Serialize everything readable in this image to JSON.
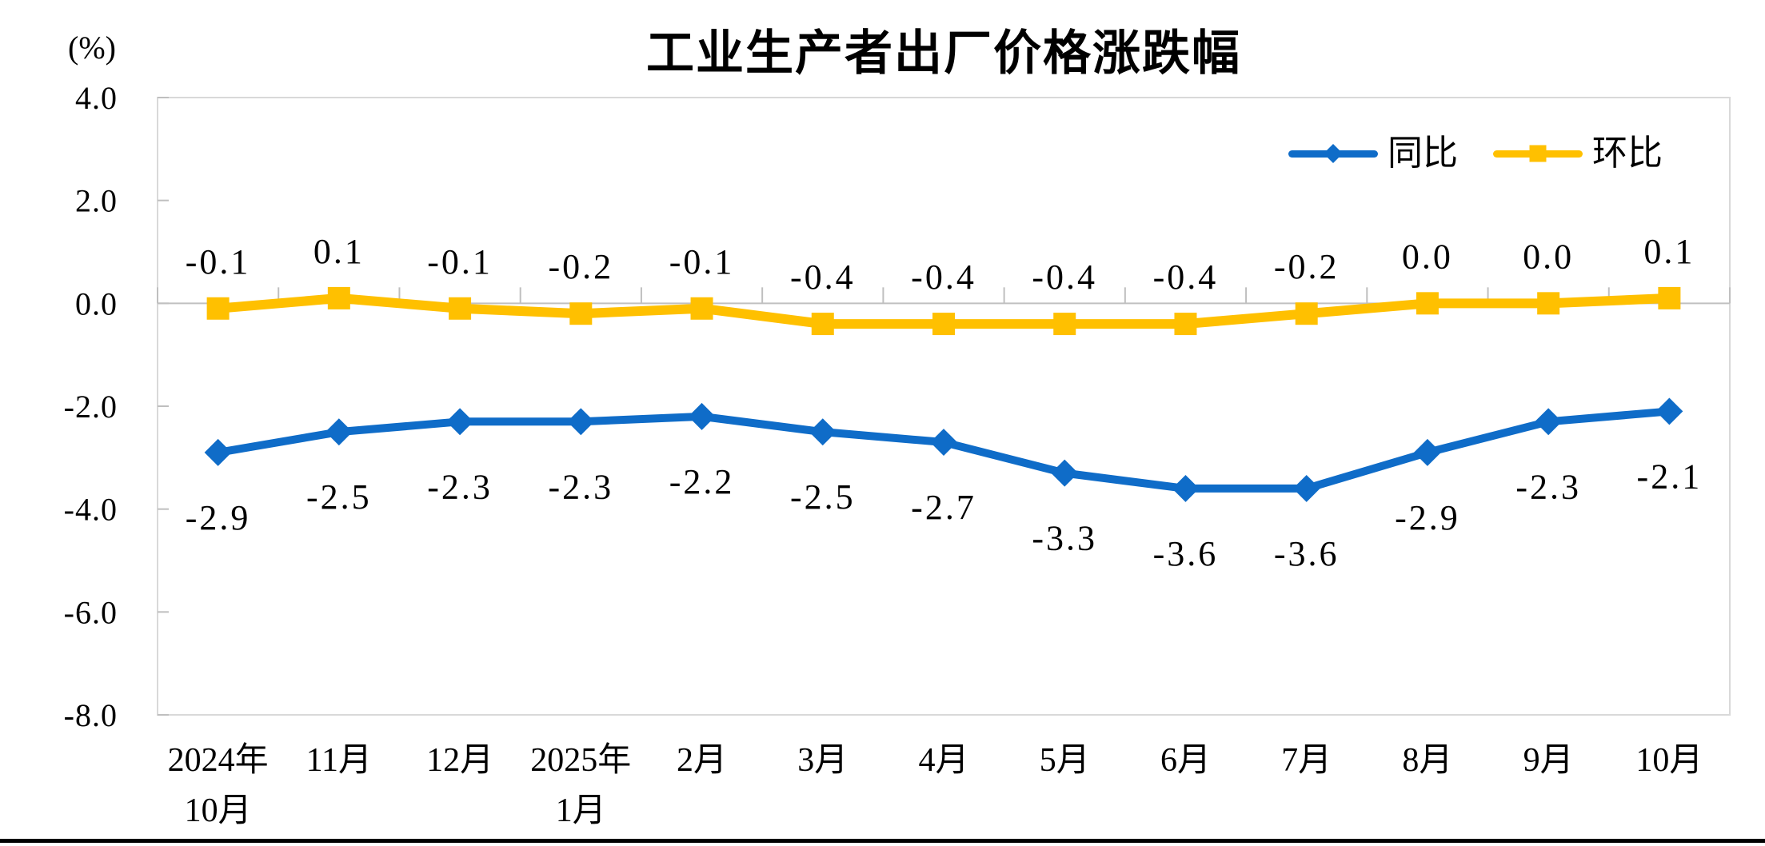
{
  "page": {
    "background": "#FFFFFF"
  },
  "header": {
    "title": "工业生产者出厂价格涨跌幅",
    "unit_label": "(%)"
  },
  "chart_data": {
    "type": "line",
    "title": "工业生产者出厂价格涨跌幅",
    "ylabel": "(%)",
    "xlabel": "",
    "ylim": [
      -8,
      4
    ],
    "ytick_step": 2.0,
    "yticks": [
      "4.0",
      "2.0",
      "0.0",
      "-2.0",
      "-4.0",
      "-6.0",
      "-8.0"
    ],
    "grid": "zero-line-only",
    "legend_position": "top-right",
    "categories": [
      "2024年\n10月",
      "11月",
      "12月",
      "2025年\n1月",
      "2月",
      "3月",
      "4月",
      "5月",
      "6月",
      "7月",
      "8月",
      "9月",
      "10月"
    ],
    "series": [
      {
        "key": "yoy",
        "name": "同比",
        "color": "#0F6CC8",
        "marker": "diamond",
        "label_placement": "below",
        "values": [
          -2.9,
          -2.5,
          -2.3,
          -2.3,
          -2.2,
          -2.5,
          -2.7,
          -3.3,
          -3.6,
          -3.6,
          -2.9,
          -2.3,
          -2.1
        ]
      },
      {
        "key": "mom",
        "name": "环比",
        "color": "#FFC000",
        "marker": "square",
        "label_placement": "above",
        "values": [
          -0.1,
          0.1,
          -0.1,
          -0.2,
          -0.1,
          -0.4,
          -0.4,
          -0.4,
          -0.4,
          -0.2,
          0.0,
          0.0,
          0.1
        ]
      }
    ],
    "axis_colors": {
      "border": "#D9D9D9",
      "zero_line": "#C0C0C0",
      "tick": "#BFBFBF",
      "text": "#000000"
    }
  }
}
